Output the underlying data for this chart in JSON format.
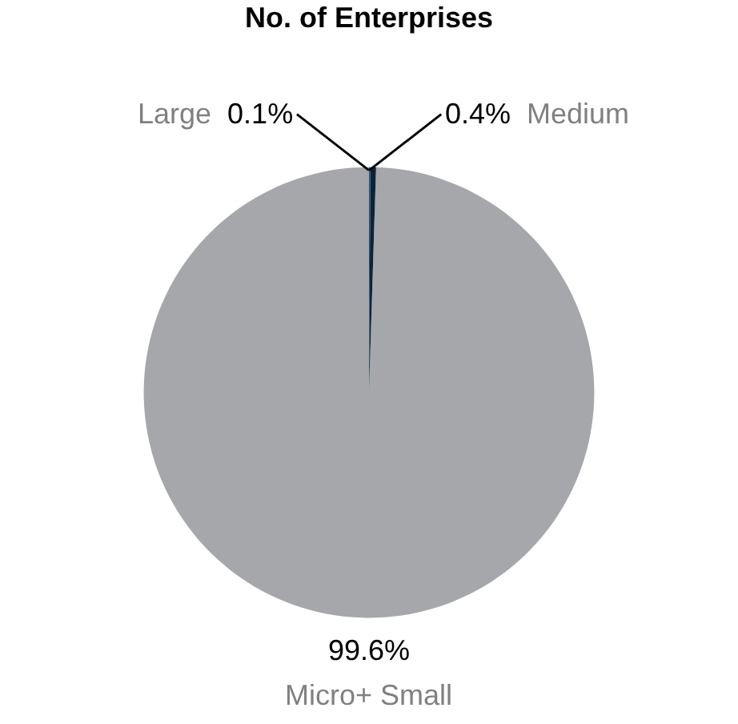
{
  "chart_data": {
    "type": "pie",
    "title": "No. of Enterprises",
    "categories": [
      "Large",
      "Micro+ Small",
      "Medium"
    ],
    "values": [
      0.1,
      99.6,
      0.4
    ],
    "value_labels": [
      "0.1%",
      "99.6%",
      "0.4%"
    ],
    "colors": [
      "#1f4e79",
      "#a5a7aa",
      "#0d2438"
    ]
  }
}
